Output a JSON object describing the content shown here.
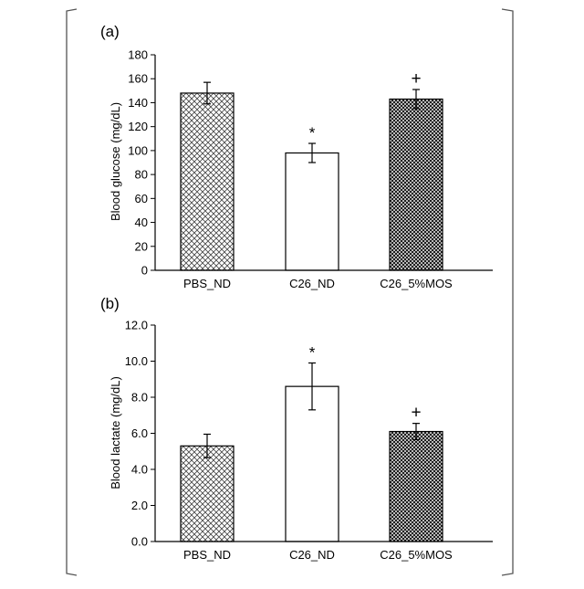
{
  "chart_data": [
    {
      "type": "bar",
      "panel_label": "(a)",
      "categories": [
        "PBS_ND",
        "C26_ND",
        "C26_5%MOS"
      ],
      "values": [
        148,
        98,
        143
      ],
      "errors": [
        9,
        8,
        8
      ],
      "significance": [
        "",
        "*",
        "+"
      ],
      "fills": [
        "light-crosshatch",
        "white",
        "dark-crosshatch"
      ],
      "ylabel": "Blood glucose (mg/dL)",
      "ylim": [
        0,
        180
      ],
      "yticks": [
        0,
        20,
        40,
        60,
        80,
        100,
        120,
        140,
        160,
        180
      ],
      "ytick_labels": [
        "0",
        "20",
        "40",
        "60",
        "80",
        "100",
        "120",
        "140",
        "160",
        "180"
      ],
      "grid": false
    },
    {
      "type": "bar",
      "panel_label": "(b)",
      "categories": [
        "PBS_ND",
        "C26_ND",
        "C26_5%MOS"
      ],
      "values": [
        5.3,
        8.6,
        6.1
      ],
      "errors": [
        0.65,
        1.3,
        0.45
      ],
      "significance": [
        "",
        "*",
        "+"
      ],
      "fills": [
        "light-crosshatch",
        "white",
        "dark-crosshatch"
      ],
      "ylabel": "Blood lactate (mg/dL)",
      "ylim": [
        0,
        12
      ],
      "yticks": [
        0,
        2,
        4,
        6,
        8,
        10,
        12
      ],
      "ytick_labels": [
        "0.0",
        "2.0",
        "4.0",
        "6.0",
        "8.0",
        "10.0",
        "12.0"
      ],
      "grid": false
    }
  ]
}
